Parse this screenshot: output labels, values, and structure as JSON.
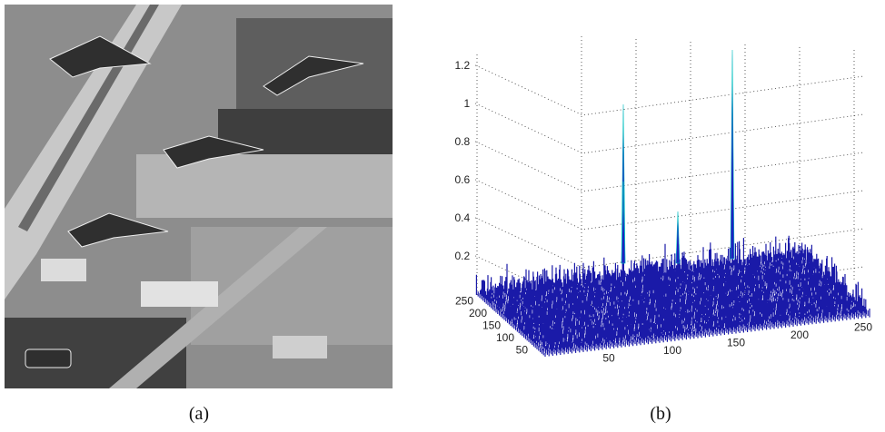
{
  "panel_a": {
    "caption": "(a)"
  },
  "panel_b": {
    "caption": "(b)",
    "zticks": [
      0.2,
      0.4,
      0.6,
      0.8,
      1,
      1.2
    ],
    "xticks": [
      50,
      100,
      150,
      200,
      250
    ],
    "yticks": [
      50,
      100,
      150,
      200,
      250
    ]
  }
}
